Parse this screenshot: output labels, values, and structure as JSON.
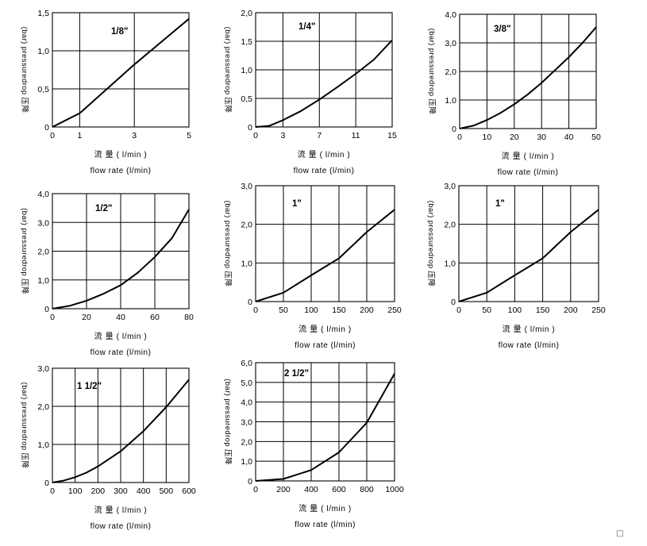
{
  "footnote": "□",
  "chart_data": [
    {
      "type": "line",
      "title": "1/8\"",
      "xlabel": "流 量 ( l/min )",
      "xlabel2": "flow rate (l/min)",
      "ylabel": "(bar) pressuredrop 压降",
      "xlim": [
        0,
        5
      ],
      "ylim": [
        0,
        1.5
      ],
      "xticks": [
        0,
        1,
        3,
        5
      ],
      "yticks": [
        0,
        0.5,
        1.0,
        1.5
      ],
      "xtick_labels": [
        "0",
        "1",
        "3",
        "5"
      ],
      "ytick_labels": [
        "0",
        "0,5",
        "1,0",
        "1,5"
      ],
      "grid": true,
      "series": [
        {
          "x": [
            0,
            1,
            2,
            3,
            4,
            5
          ],
          "y": [
            0,
            0.18,
            0.5,
            0.82,
            1.12,
            1.42
          ]
        }
      ]
    },
    {
      "type": "line",
      "title": "1/4\"",
      "xlabel": "流 量 ( l/min )",
      "xlabel2": "flow rate (l/min)",
      "ylabel": "(bar) pressuredrop 压降",
      "xlim": [
        0,
        15
      ],
      "ylim": [
        0,
        2.0
      ],
      "xticks": [
        0,
        3,
        7,
        11,
        15
      ],
      "yticks": [
        0,
        0.5,
        1.0,
        1.5,
        2.0
      ],
      "xtick_labels": [
        "0",
        "3",
        "7",
        "11",
        "15"
      ],
      "ytick_labels": [
        "0",
        "0,5",
        "1,0",
        "1,5",
        "2,0"
      ],
      "grid": true,
      "series": [
        {
          "x": [
            0,
            1.5,
            3,
            5,
            7,
            9,
            11,
            13,
            15
          ],
          "y": [
            0,
            0.02,
            0.12,
            0.28,
            0.48,
            0.7,
            0.93,
            1.18,
            1.52
          ]
        }
      ]
    },
    {
      "type": "line",
      "title": "3/8\"",
      "xlabel": "流 量 ( l/min )",
      "xlabel2": "flow rate (l/min)",
      "ylabel": "(bar) pressuredrop 压降",
      "xlim": [
        0,
        50
      ],
      "ylim": [
        0,
        4.0
      ],
      "xticks": [
        0,
        10,
        20,
        30,
        40,
        50
      ],
      "yticks": [
        0,
        1.0,
        2.0,
        3.0,
        4.0
      ],
      "xtick_labels": [
        "0",
        "10",
        "20",
        "30",
        "40",
        "50"
      ],
      "ytick_labels": [
        "0",
        "1,0",
        "2,0",
        "3,0",
        "4,0"
      ],
      "grid": true,
      "series": [
        {
          "x": [
            0,
            5,
            10,
            15,
            20,
            25,
            30,
            35,
            40,
            45,
            50
          ],
          "y": [
            0,
            0.1,
            0.3,
            0.55,
            0.85,
            1.2,
            1.6,
            2.05,
            2.5,
            3.0,
            3.55
          ]
        }
      ]
    },
    {
      "type": "line",
      "title": "1/2\"",
      "xlabel": "流 量 ( l/min )",
      "xlabel2": "flow rate (l/min)",
      "ylabel": "(bar) pressuredrop 压降",
      "xlim": [
        0,
        80
      ],
      "ylim": [
        0,
        4.0
      ],
      "xticks": [
        0,
        20,
        40,
        60,
        80
      ],
      "yticks": [
        0,
        1.0,
        2.0,
        3.0,
        4.0
      ],
      "xtick_labels": [
        "0",
        "20",
        "40",
        "60",
        "80"
      ],
      "ytick_labels": [
        "0",
        "1,0",
        "2,0",
        "3,0",
        "4,0"
      ],
      "grid": true,
      "series": [
        {
          "x": [
            0,
            10,
            20,
            30,
            40,
            50,
            60,
            70,
            80
          ],
          "y": [
            0,
            0.1,
            0.28,
            0.52,
            0.82,
            1.25,
            1.8,
            2.45,
            3.45
          ]
        }
      ]
    },
    {
      "type": "line",
      "title": "1\"",
      "xlabel": "流 量 ( l/min )",
      "xlabel2": "flow rate (l/min)",
      "ylabel": "(bar) pressuredrop 压降",
      "xlim": [
        0,
        250
      ],
      "ylim": [
        0,
        3.0
      ],
      "xticks": [
        0,
        50,
        100,
        150,
        200,
        250
      ],
      "yticks": [
        0,
        1.0,
        2.0,
        3.0
      ],
      "xtick_labels": [
        "0",
        "50",
        "100",
        "150",
        "200",
        "250"
      ],
      "ytick_labels": [
        "0",
        "1,0",
        "2,0",
        "3,0"
      ],
      "grid": true,
      "series": [
        {
          "x": [
            0,
            50,
            100,
            150,
            200,
            250
          ],
          "y": [
            0,
            0.23,
            0.68,
            1.12,
            1.8,
            2.38
          ]
        }
      ]
    },
    {
      "type": "line",
      "title": "1\"",
      "xlabel": "流 量 ( l/min )",
      "xlabel2": "flow rate (l/min)",
      "ylabel": "(bar) pressuredrop 压降",
      "xlim": [
        0,
        250
      ],
      "ylim": [
        0,
        3.0
      ],
      "xticks": [
        0,
        50,
        100,
        150,
        200,
        250
      ],
      "yticks": [
        0,
        1.0,
        2.0,
        3.0
      ],
      "xtick_labels": [
        "0",
        "50",
        "100",
        "150",
        "200",
        "250"
      ],
      "ytick_labels": [
        "0",
        "1,0",
        "2,0",
        "3,0"
      ],
      "grid": true,
      "series": [
        {
          "x": [
            0,
            50,
            100,
            150,
            200,
            250
          ],
          "y": [
            0,
            0.23,
            0.68,
            1.12,
            1.8,
            2.38
          ]
        }
      ]
    },
    {
      "type": "line",
      "title": "1 1/2\"",
      "xlabel": "流 量 ( l/min )",
      "xlabel2": "flow rate (l/min)",
      "ylabel": "(bar) pressuredrop 压降",
      "xlim": [
        0,
        600
      ],
      "ylim": [
        0,
        3.0
      ],
      "xticks": [
        0,
        100,
        200,
        300,
        400,
        500,
        600
      ],
      "yticks": [
        0,
        1.0,
        2.0,
        3.0
      ],
      "xtick_labels": [
        "0",
        "100",
        "200",
        "300",
        "400",
        "500",
        "600"
      ],
      "ytick_labels": [
        "0",
        "1,0",
        "2,0",
        "3,0"
      ],
      "grid": true,
      "series": [
        {
          "x": [
            0,
            50,
            100,
            150,
            200,
            300,
            400,
            500,
            600
          ],
          "y": [
            0,
            0.05,
            0.14,
            0.26,
            0.42,
            0.82,
            1.35,
            1.98,
            2.7
          ]
        }
      ]
    },
    {
      "type": "line",
      "title": "2 1/2\"",
      "xlabel": "流 量 ( l/min )",
      "xlabel2": "flow rate (l/min)",
      "ylabel": "(bar) pressuredrop 压降",
      "xlim": [
        0,
        1000
      ],
      "ylim": [
        0,
        6.0
      ],
      "xticks": [
        0,
        200,
        400,
        600,
        800,
        1000
      ],
      "yticks": [
        0,
        1.0,
        2.0,
        3.0,
        4.0,
        5.0,
        6.0
      ],
      "xtick_labels": [
        "0",
        "200",
        "400",
        "600",
        "800",
        "1000"
      ],
      "ytick_labels": [
        "0",
        "1,0",
        "2,0",
        "3,0",
        "4,0",
        "5,0",
        "6,0"
      ],
      "grid": true,
      "series": [
        {
          "x": [
            0,
            200,
            400,
            600,
            800,
            1000
          ],
          "y": [
            0,
            0.1,
            0.55,
            1.45,
            2.95,
            5.45
          ]
        }
      ]
    }
  ]
}
